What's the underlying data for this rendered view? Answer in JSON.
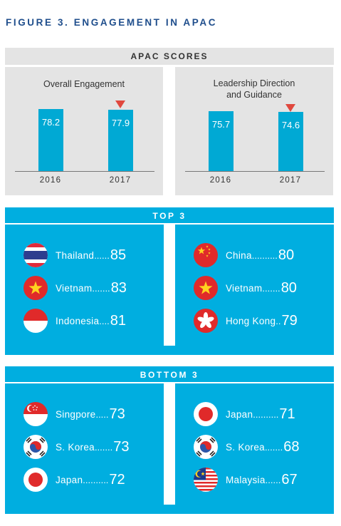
{
  "figure_title": "FIGURE 3. ENGAGEMENT IN APAC",
  "apac_scores": {
    "header": "APAC SCORES",
    "panels": [
      {
        "title_lines": [
          "Overall Engagement"
        ],
        "years": [
          "2016",
          "2017"
        ],
        "values": [
          "78.2",
          "77.9"
        ],
        "decline_marker_on": "2017"
      },
      {
        "title_lines": [
          "Leadership Direction",
          "and Guidance"
        ],
        "years": [
          "2016",
          "2017"
        ],
        "values": [
          "75.7",
          "74.6"
        ],
        "decline_marker_on": "2017"
      }
    ]
  },
  "top3": {
    "header": "TOP 3",
    "left": [
      {
        "country": "Thailand",
        "dots": " ......",
        "score": "85",
        "flag": "thailand-flag-icon"
      },
      {
        "country": "Vietnam",
        "dots": ".......",
        "score": "83",
        "flag": "vietnam-flag-icon"
      },
      {
        "country": "Indonesia",
        "dots": " ....",
        "score": "81",
        "flag": "indonesia-flag-icon"
      }
    ],
    "right": [
      {
        "country": "China",
        "dots": "..........",
        "score": "80",
        "flag": "china-flag-icon"
      },
      {
        "country": "Vietnam",
        "dots": ".......",
        "score": "80",
        "flag": "vietnam-flag-icon"
      },
      {
        "country": "Hong Kong",
        "dots": " ..",
        "score": "79",
        "flag": "hong-kong-flag-icon"
      }
    ]
  },
  "bottom3": {
    "header": "BOTTOM 3",
    "left": [
      {
        "country": "Singpore",
        "dots": " .....",
        "score": "73",
        "flag": "singapore-flag-icon"
      },
      {
        "country": "S. Korea",
        "dots": ".......",
        "score": "73",
        "flag": "south-korea-flag-icon"
      },
      {
        "country": "Japan",
        "dots": " ..........",
        "score": "72",
        "flag": "japan-flag-icon"
      }
    ],
    "right": [
      {
        "country": "Japan",
        "dots": " ..........",
        "score": "71",
        "flag": "japan-flag-icon"
      },
      {
        "country": "S. Korea",
        "dots": ".......",
        "score": "68",
        "flag": "south-korea-flag-icon"
      },
      {
        "country": "Malaysia",
        "dots": " ......",
        "score": "67",
        "flag": "malaysia-flag-icon"
      }
    ]
  },
  "colors": {
    "bar": "#00a9d4",
    "panel": "#e4e4e4",
    "section": "#00aee0",
    "decline_marker": "#e0483e",
    "title": "#1f4e8c"
  },
  "chart_data": [
    {
      "type": "bar",
      "title": "Overall Engagement",
      "categories": [
        "2016",
        "2017"
      ],
      "values": [
        78.2,
        77.9
      ],
      "ylim": [
        0,
        80
      ]
    },
    {
      "type": "bar",
      "title": "Leadership Direction and Guidance",
      "categories": [
        "2016",
        "2017"
      ],
      "values": [
        75.7,
        74.6
      ],
      "ylim": [
        0,
        80
      ]
    },
    {
      "type": "table",
      "title": "TOP 3",
      "series": [
        {
          "values": [
            {
              "country": "Thailand",
              "score": 85
            },
            {
              "country": "Vietnam",
              "score": 83
            },
            {
              "country": "Indonesia",
              "score": 81
            }
          ]
        },
        {
          "values": [
            {
              "country": "China",
              "score": 80
            },
            {
              "country": "Vietnam",
              "score": 80
            },
            {
              "country": "Hong Kong",
              "score": 79
            }
          ]
        }
      ]
    },
    {
      "type": "table",
      "title": "BOTTOM 3",
      "series": [
        {
          "values": [
            {
              "country": "Singpore",
              "score": 73
            },
            {
              "country": "S. Korea",
              "score": 73
            },
            {
              "country": "Japan",
              "score": 72
            }
          ]
        },
        {
          "values": [
            {
              "country": "Japan",
              "score": 71
            },
            {
              "country": "S. Korea",
              "score": 68
            },
            {
              "country": "Malaysia",
              "score": 67
            }
          ]
        }
      ]
    }
  ]
}
